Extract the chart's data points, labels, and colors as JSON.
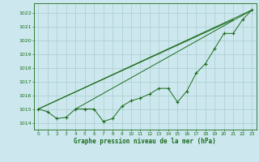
{
  "title": "Graphe pression niveau de la mer (hPa)",
  "bg_color": "#cce8ee",
  "grid_color": "#aacccc",
  "line_color": "#1a6b1a",
  "xlim": [
    -0.5,
    23.5
  ],
  "ylim": [
    1013.5,
    1022.7
  ],
  "yticks": [
    1014,
    1015,
    1016,
    1017,
    1018,
    1019,
    1020,
    1021,
    1022
  ],
  "xticks": [
    0,
    1,
    2,
    3,
    4,
    5,
    6,
    7,
    8,
    9,
    10,
    11,
    12,
    13,
    14,
    15,
    16,
    17,
    18,
    19,
    20,
    21,
    22,
    23
  ],
  "main_x": [
    0,
    1,
    2,
    3,
    4,
    5,
    6,
    7,
    8,
    9,
    10,
    11,
    12,
    13,
    14,
    15,
    16,
    17,
    18,
    19,
    20,
    21,
    22,
    23
  ],
  "main_y": [
    1015.0,
    1014.8,
    1014.3,
    1014.4,
    1015.0,
    1015.0,
    1015.0,
    1014.1,
    1014.3,
    1015.2,
    1015.6,
    1015.8,
    1016.1,
    1016.5,
    1016.5,
    1015.5,
    1016.3,
    1017.6,
    1018.3,
    1019.4,
    1020.5,
    1020.5,
    1021.5,
    1022.2
  ],
  "trend1_x": [
    0,
    23
  ],
  "trend1_y": [
    1015.0,
    1022.2
  ],
  "trend2_x": [
    4,
    23
  ],
  "trend2_y": [
    1015.0,
    1022.2
  ],
  "trend3_x": [
    0,
    21
  ],
  "trend3_y": [
    1015.0,
    1021.5
  ],
  "figsize": [
    3.2,
    2.0
  ],
  "dpi": 100
}
